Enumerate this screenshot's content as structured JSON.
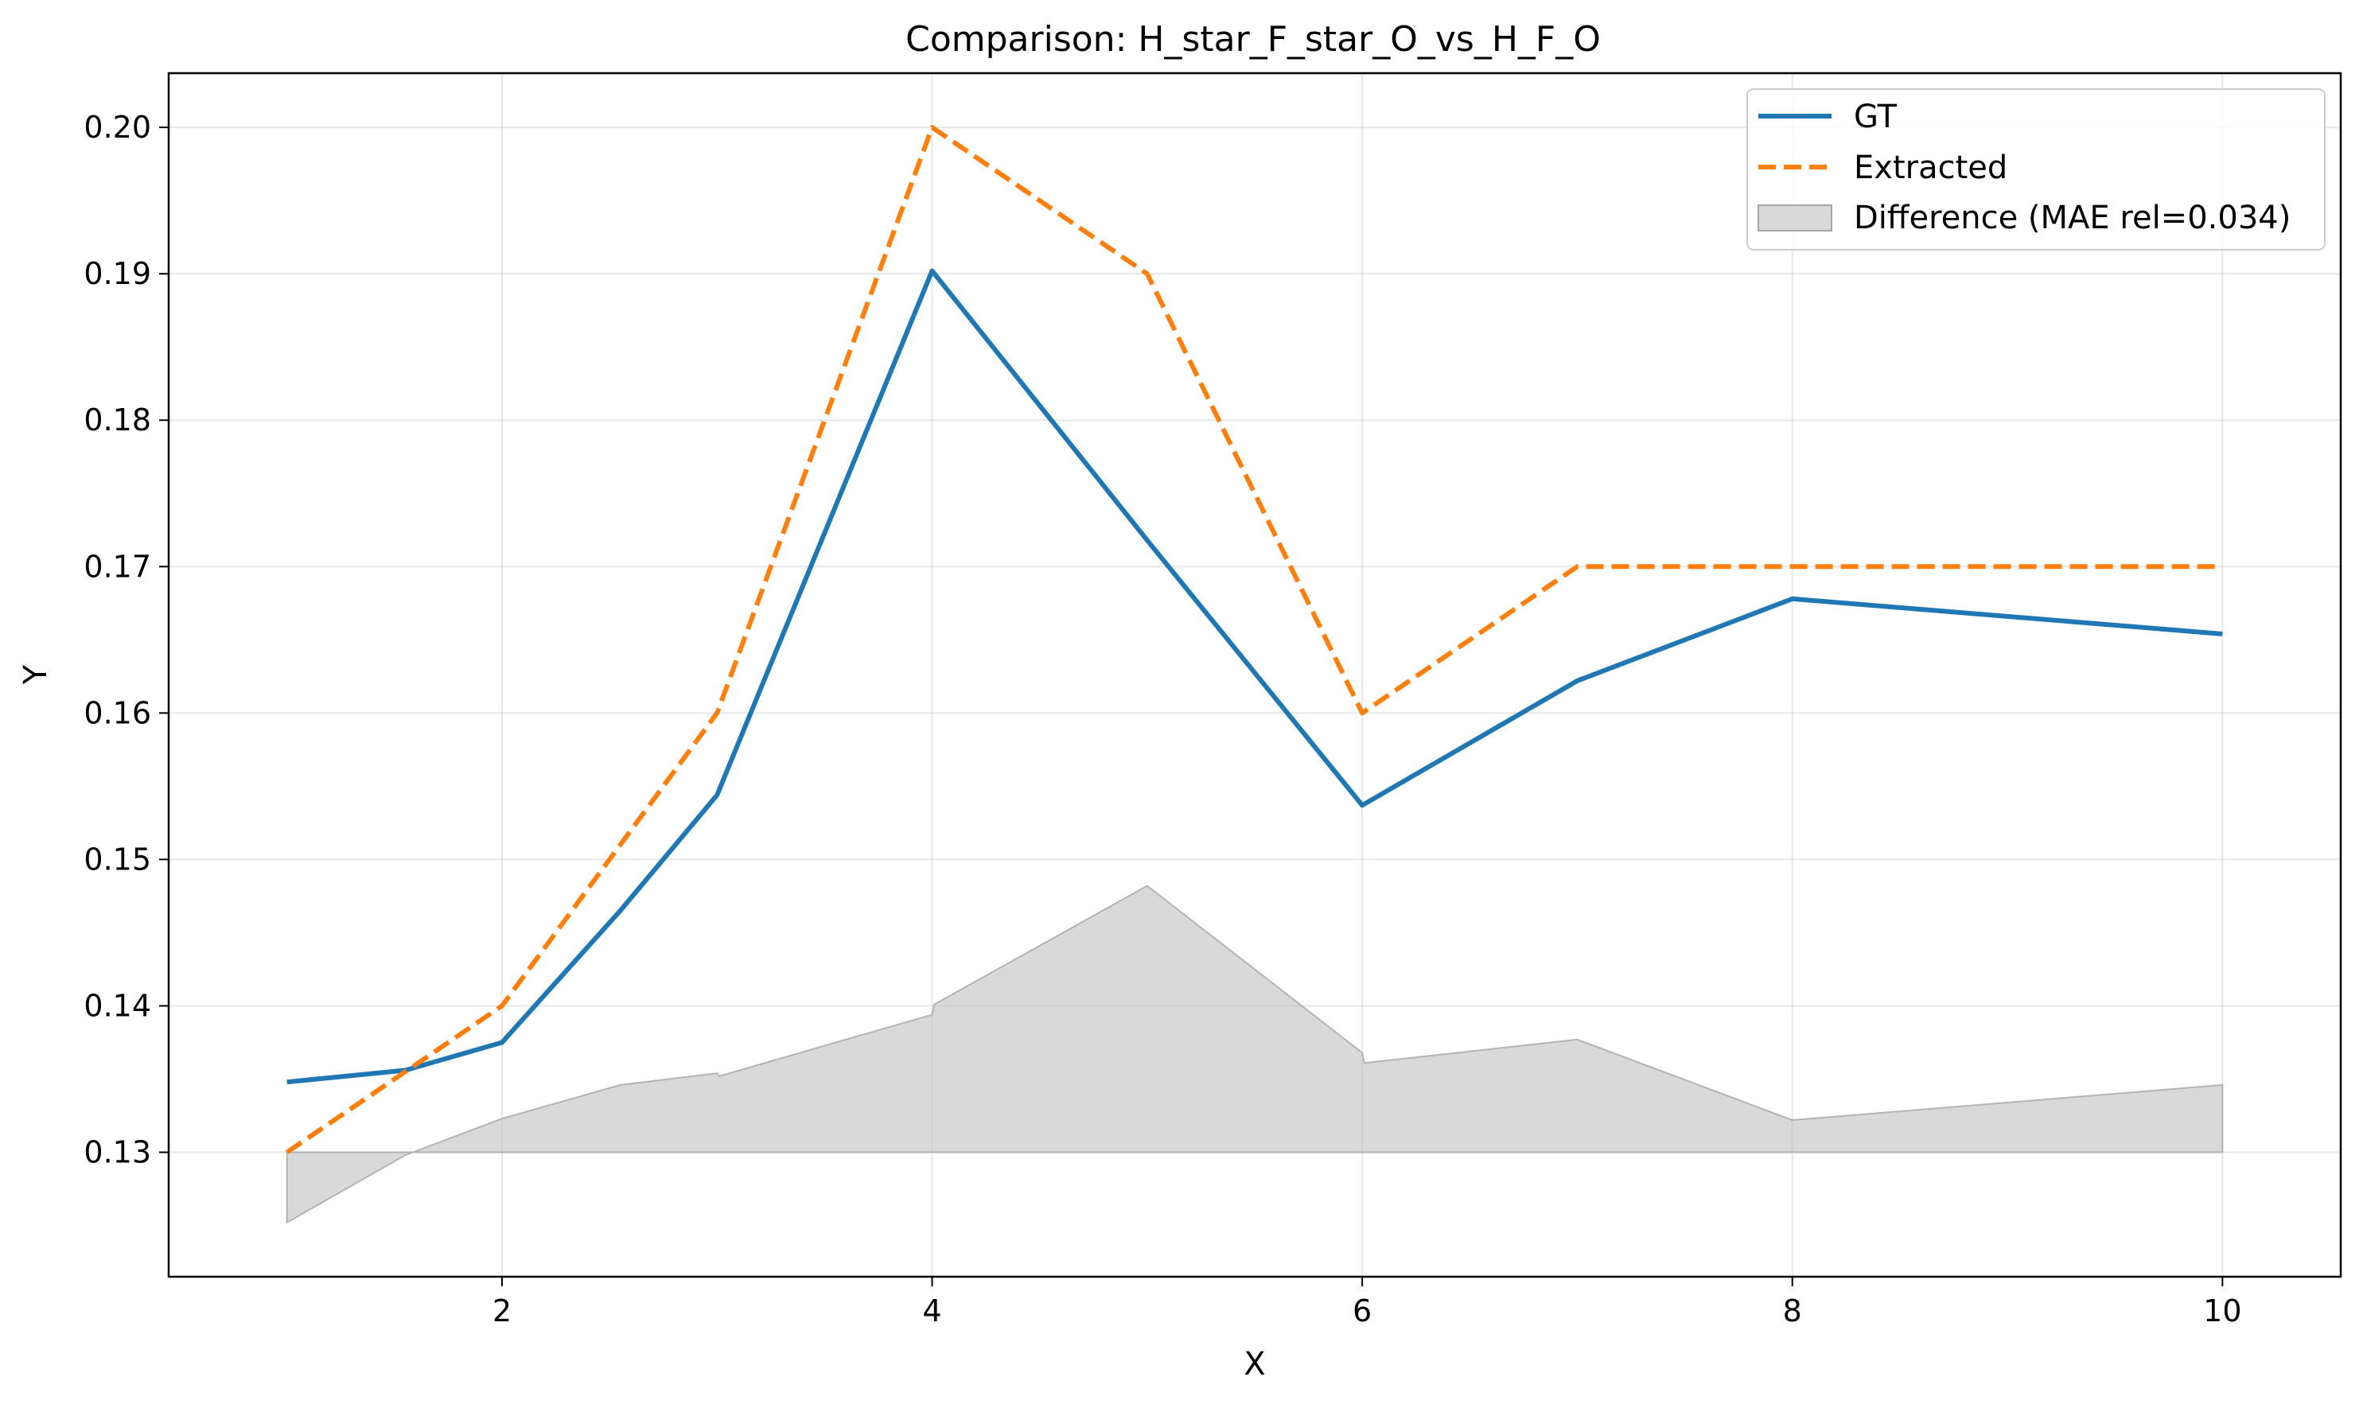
{
  "chart_data": {
    "type": "line",
    "title": "Comparison: H_star_F_star_O_vs_H_F_O",
    "xlabel": "X",
    "ylabel": "Y",
    "xlim": [
      0.45,
      10.55
    ],
    "ylim": [
      0.1215,
      0.2037
    ],
    "xticks": [
      2,
      4,
      6,
      8,
      10
    ],
    "yticks": [
      0.13,
      0.14,
      0.15,
      0.16,
      0.17,
      0.18,
      0.19,
      0.2
    ],
    "xtick_labels": [
      "2",
      "4",
      "6",
      "8",
      "10"
    ],
    "ytick_labels": [
      "0.13",
      "0.14",
      "0.15",
      "0.16",
      "0.17",
      "0.18",
      "0.19",
      "0.20"
    ],
    "grid": true,
    "legend_position": "top-right",
    "series": [
      {
        "name": "GT",
        "style": "solid",
        "color": "#1f77b4",
        "x": [
          1,
          1.55,
          2,
          2.55,
          3,
          4,
          5,
          6,
          7,
          8,
          10
        ],
        "y": [
          0.1348,
          0.1356,
          0.1375,
          0.1465,
          0.1544,
          0.1902,
          0.1718,
          0.1537,
          0.1622,
          0.1678,
          0.1654
        ]
      },
      {
        "name": "Extracted",
        "style": "dashed",
        "color": "#ff7f0e",
        "x": [
          1,
          2,
          3,
          4,
          5,
          6,
          7,
          8,
          10
        ],
        "y": [
          0.13,
          0.14,
          0.16,
          0.2,
          0.19,
          0.16,
          0.17,
          0.17,
          0.17
        ]
      },
      {
        "name": "Difference (MAE rel=0.034)",
        "style": "fill",
        "color": "#bfbfbf",
        "baseline": 0.13,
        "x": [
          1,
          1.55,
          2,
          2.55,
          3,
          3.01,
          4,
          4.01,
          5,
          6,
          6.01,
          7,
          8,
          10
        ],
        "y": [
          0.1252,
          0.1298,
          0.1323,
          0.1346,
          0.1354,
          0.1352,
          0.1394,
          0.1401,
          0.1482,
          0.1368,
          0.1361,
          0.1377,
          0.1322,
          0.1346
        ]
      }
    ]
  }
}
